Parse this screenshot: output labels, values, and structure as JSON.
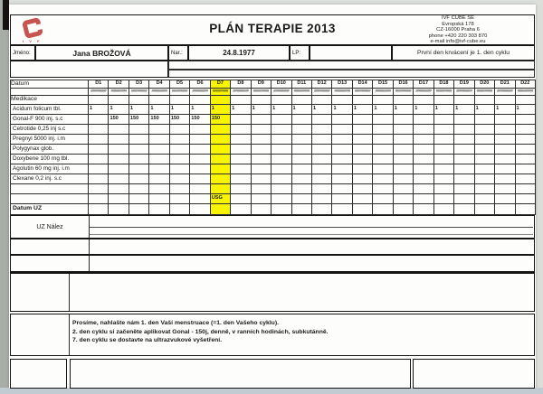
{
  "header": {
    "title": "PLÁN TERAPIE 2013",
    "logo": {
      "caption": "I V F",
      "color": "#c75450"
    },
    "clinic_lines": [
      "IVF CUBE SE",
      "Evropská 178",
      "CZ-16000 Praha 6",
      "phone  +420 220 303 870",
      "e-mail  info@ivf-cube.eu"
    ]
  },
  "patient": {
    "name_label": "Jméno:",
    "name": "Jana BROŽOVÁ",
    "birth_label": "Nar.:",
    "birth_date": "24.8.1977",
    "lp_label": "LP:",
    "lp_value": "",
    "cycle_note": "První den krvácení je 1. den cyklu"
  },
  "therapy_table": {
    "datum_label": "Datum",
    "days": [
      "D1",
      "D2",
      "D3",
      "D4",
      "D5",
      "D6",
      "D7",
      "D8",
      "D9",
      "D10",
      "D11",
      "D12",
      "D13",
      "D14",
      "D15",
      "D16",
      "D17",
      "D18",
      "D19",
      "D20",
      "D21",
      "D22"
    ],
    "date_placeholder": "########",
    "highlighted_day": "D7",
    "highlight_color": "#f9f400",
    "section_label": "Medikace",
    "medications": [
      {
        "label": "Acidum folicum tbl.",
        "values": [
          "1",
          "1",
          "1",
          "1",
          "1",
          "1",
          "1",
          "1",
          "1",
          "1",
          "1",
          "1",
          "1",
          "1",
          "1",
          "1",
          "1",
          "1",
          "1",
          "1",
          "1",
          "1"
        ]
      },
      {
        "label": "Gonal-F 900 inj. s.c",
        "values": [
          "",
          "150",
          "150",
          "150",
          "150",
          "150",
          "150",
          "",
          "",
          "",
          "",
          "",
          "",
          "",
          "",
          "",
          "",
          "",
          "",
          "",
          "",
          ""
        ]
      },
      {
        "label": "Cetrotide 0,25 inj s.c",
        "values": []
      },
      {
        "label": "Pregnyl 5000 inj. i.m",
        "values": []
      },
      {
        "label": "Polygynax glob.",
        "values": []
      },
      {
        "label": "Doxybene 100 mg tbl.",
        "values": []
      },
      {
        "label": "Agolutin 60 mg inj. i.m",
        "values": []
      },
      {
        "label": "Clexane 0,2 inj. s.c",
        "values": []
      },
      {
        "label": "",
        "values": []
      },
      {
        "label": "",
        "values": [
          "",
          "",
          "",
          "",
          "",
          "",
          "USG"
        ]
      },
      {
        "label": "Datum UZ",
        "values": [],
        "bold": true
      }
    ]
  },
  "ultrasound": {
    "finding_label": "UZ Nález"
  },
  "instructions": {
    "lines": [
      "Prosíme, nahlašte nám 1. den Vaší menstruace (=1. den Vašeho cyklu).",
      "2. den cyklu si začeněte aplikovat Gonal - 150j, denně, v ranních hodinách, subkutánně.",
      "7. den cyklu se dostavte na ultrazvukové vyšetření."
    ]
  }
}
